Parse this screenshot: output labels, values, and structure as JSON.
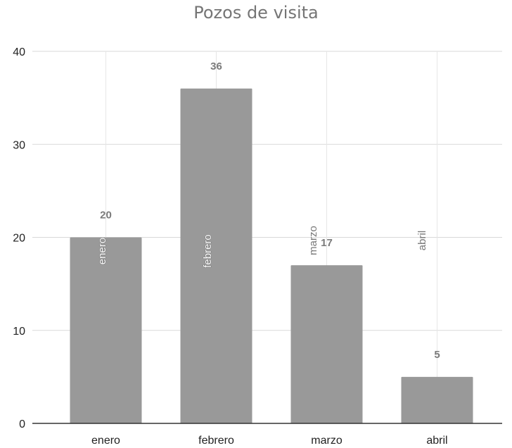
{
  "chart_data": {
    "type": "bar",
    "title": "Pozos de visita",
    "categories": [
      "enero",
      "febrero",
      "marzo",
      "abril"
    ],
    "values": [
      20,
      36,
      17,
      5
    ],
    "bar_labels": [
      "enero",
      "febrero",
      "marzo",
      "abril"
    ],
    "ylim": [
      0,
      40
    ],
    "yticks": [
      0,
      10,
      20,
      30,
      40
    ],
    "xlabel": "",
    "ylabel": "",
    "grid": true,
    "legend": "none",
    "colors": {
      "bar": "#999999",
      "grid": "#d9d9d9",
      "axis": "#333333",
      "data_label": "#7a7a7a"
    }
  }
}
